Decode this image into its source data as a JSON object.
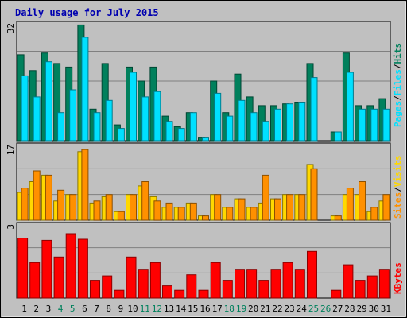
{
  "chart_data": [
    {
      "type": "bar",
      "title": "Daily usage for July 2015",
      "categories": [
        "1",
        "2",
        "3",
        "4",
        "5",
        "6",
        "7",
        "8",
        "9",
        "10",
        "11",
        "12",
        "13",
        "14",
        "15",
        "16",
        "17",
        "18",
        "19",
        "20",
        "21",
        "22",
        "23",
        "24",
        "25",
        "26",
        "27",
        "28",
        "29",
        "30",
        "31"
      ],
      "weekend_categories": [
        "4",
        "5",
        "11",
        "12",
        "18",
        "19",
        "25",
        "26"
      ],
      "ymax_label": "32",
      "ylim": [
        0,
        34
      ],
      "legend": [
        "Pages",
        "Files",
        "Hits"
      ],
      "series": [
        {
          "name": "Hits",
          "color": "#00805c",
          "values": [
            24.5,
            20,
            25,
            22,
            21,
            33,
            9,
            22,
            4.5,
            21,
            17,
            21,
            7,
            4,
            8,
            1,
            17,
            8,
            19,
            12.5,
            10,
            10,
            10.5,
            11,
            22,
            0,
            2.5,
            25,
            10,
            10,
            12
          ]
        },
        {
          "name": "Files",
          "color": "#00e0ff",
          "values": [
            18.5,
            12.5,
            22.5,
            8,
            14.5,
            29.5,
            8,
            11.5,
            3.5,
            19.5,
            12.5,
            14,
            5.5,
            3.5,
            8,
            1,
            13.5,
            7,
            11.5,
            8,
            5.5,
            9,
            10.5,
            11,
            18,
            0,
            2.5,
            19.5,
            9,
            9,
            9
          ]
        }
      ]
    },
    {
      "type": "bar",
      "ymax_label": "17",
      "ylim": [
        0,
        18
      ],
      "legend": [
        "Sites",
        "Visits"
      ],
      "series": [
        {
          "name": "Sites",
          "color": "#ffd800",
          "values": [
            6.5,
            9,
            10.5,
            4.5,
            6,
            16,
            4,
            5.5,
            2,
            6,
            8,
            5.5,
            3,
            3,
            4,
            1,
            6,
            3,
            5,
            3,
            4,
            5,
            6,
            6,
            13,
            0,
            1,
            6,
            6,
            2,
            4.5
          ]
        },
        {
          "name": "Visits",
          "color": "#ff9000",
          "values": [
            7.5,
            11.5,
            10.5,
            7,
            6,
            16.5,
            4.5,
            6,
            2,
            6,
            9,
            4.5,
            4,
            3,
            4,
            1,
            6,
            3,
            5,
            3,
            10.5,
            5,
            6,
            6,
            12,
            0,
            1,
            7.5,
            9,
            3,
            6
          ]
        }
      ]
    },
    {
      "type": "bar",
      "ymax_label": "3",
      "ylim": [
        0,
        3.4
      ],
      "legend": [
        "KBytes"
      ],
      "series": [
        {
          "name": "KBytes",
          "color": "#ff0000",
          "values": [
            2.7,
            1.6,
            2.6,
            1.85,
            2.9,
            2.65,
            0.8,
            1.0,
            0.35,
            1.85,
            1.3,
            1.6,
            0.55,
            0.35,
            1.05,
            0.35,
            1.6,
            0.8,
            1.3,
            1.3,
            0.8,
            1.3,
            1.6,
            1.3,
            2.1,
            0,
            0.35,
            1.5,
            0.8,
            1.0,
            1.3
          ]
        }
      ]
    }
  ]
}
